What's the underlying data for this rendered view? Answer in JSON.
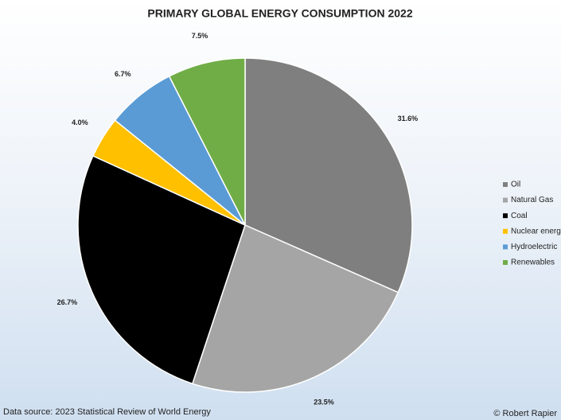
{
  "chart_data": {
    "type": "pie",
    "title": "PRIMARY GLOBAL ENERGY CONSUMPTION 2022",
    "categories": [
      "Oil",
      "Natural Gas",
      "Coal",
      "Nuclear energ",
      "Hydroelectric",
      "Renewables"
    ],
    "values": [
      31.6,
      23.5,
      26.7,
      4.0,
      6.7,
      7.5
    ],
    "value_labels": [
      "31.6%",
      "23.5%",
      "26.7%",
      "4.0%",
      "6.7%",
      "7.5%"
    ],
    "colors": [
      "#7f7f7f",
      "#a5a5a5",
      "#000000",
      "#ffc000",
      "#5b9bd5",
      "#70ad47"
    ],
    "source": "Data source: 2023 Statistical Review of World Energy",
    "credit": "© Robert Rapier"
  }
}
